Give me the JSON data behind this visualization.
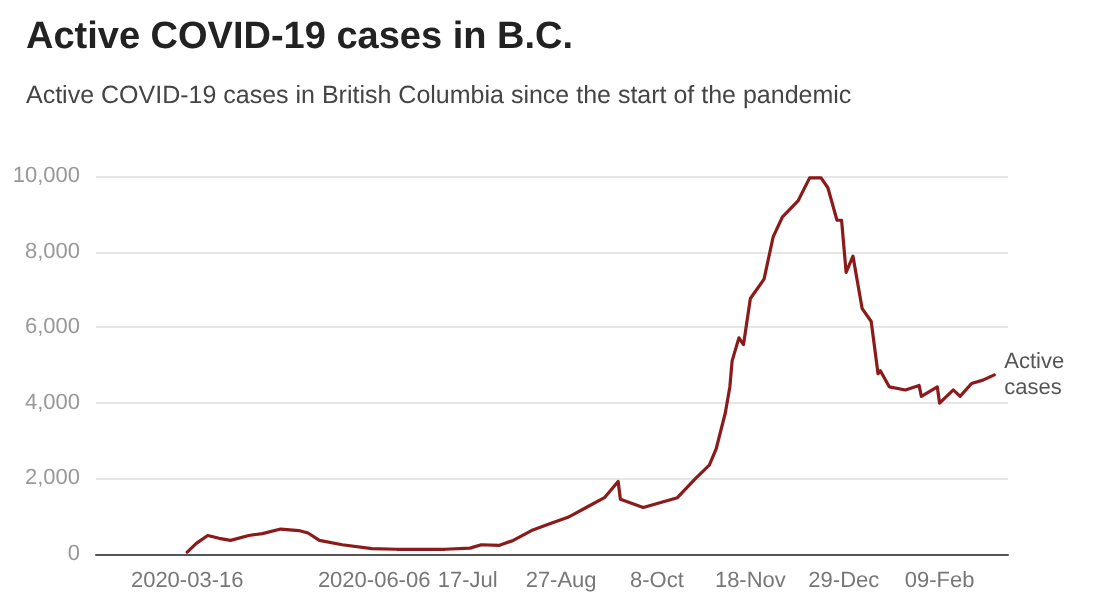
{
  "chart_data": {
    "type": "line",
    "title": "Active COVID-19 cases in B.C.",
    "subtitle": "Active COVID-19 cases in British Columbia since the start of the pandemic",
    "x": [
      "2020-03-16",
      "2020-03-20",
      "2020-03-25",
      "2020-03-30",
      "2020-04-04",
      "2020-04-12",
      "2020-04-18",
      "2020-04-26",
      "2020-05-04",
      "2020-05-08",
      "2020-05-13",
      "2020-05-23",
      "2020-06-05",
      "2020-06-16",
      "2020-07-07",
      "2020-07-18",
      "2020-07-23",
      "2020-07-31",
      "2020-08-06",
      "2020-08-14",
      "2020-08-22",
      "2020-08-30",
      "2020-09-07",
      "2020-09-15",
      "2020-09-21",
      "2020-09-22",
      "2020-10-02",
      "2020-10-17",
      "2020-10-25",
      "2020-10-31",
      "2020-11-03",
      "2020-11-07",
      "2020-11-09",
      "2020-11-10",
      "2020-11-13",
      "2020-11-15",
      "2020-11-18",
      "2020-11-24",
      "2020-11-28",
      "2020-12-02",
      "2020-12-09",
      "2020-12-14",
      "2020-12-19",
      "2020-12-22",
      "2020-12-26",
      "2020-12-28",
      "2020-12-30",
      "2021-01-02",
      "2021-01-06",
      "2021-01-10",
      "2021-01-13",
      "2021-01-14",
      "2021-01-18",
      "2021-01-25",
      "2021-01-31",
      "2021-02-01",
      "2021-02-08",
      "2021-02-09",
      "2021-02-15",
      "2021-02-18",
      "2021-02-23",
      "2021-02-28",
      "2021-03-05"
    ],
    "series": [
      {
        "name": "Active cases",
        "color": "#8b1a1a",
        "values": [
          50,
          280,
          490,
          415,
          360,
          490,
          540,
          660,
          620,
          555,
          360,
          245,
          140,
          125,
          125,
          155,
          245,
          230,
          360,
          620,
          800,
          970,
          1230,
          1490,
          1920,
          1450,
          1230,
          1490,
          2000,
          2350,
          2780,
          3730,
          4420,
          5110,
          5720,
          5540,
          6760,
          7270,
          8390,
          8910,
          9350,
          9950,
          9950,
          9690,
          8830,
          8830,
          7450,
          7880,
          6500,
          6150,
          4770,
          4850,
          4420,
          4340,
          4460,
          4170,
          4420,
          3990,
          4340,
          4170,
          4510,
          4600,
          4740
        ]
      }
    ],
    "xlim": [
      "2020-02-05",
      "2021-03-11"
    ],
    "xticks": [
      {
        "value": "2020-03-16",
        "label": "2020-03-16"
      },
      {
        "value": "2020-06-06",
        "label": "2020-06-06"
      },
      {
        "value": "2020-07-17",
        "label": "17-Jul"
      },
      {
        "value": "2020-08-27",
        "label": "27-Aug"
      },
      {
        "value": "2020-10-08",
        "label": "8-Oct"
      },
      {
        "value": "2020-11-18",
        "label": "18-Nov"
      },
      {
        "value": "2020-12-29",
        "label": "29-Dec"
      },
      {
        "value": "2021-02-09",
        "label": "09-Feb"
      }
    ],
    "ylim": [
      0,
      10000
    ],
    "yticks": [
      0,
      {
        "value": 2000,
        "label": "2,000"
      },
      {
        "value": 4000,
        "label": "4,000"
      },
      {
        "value": 6000,
        "label": "6,000"
      },
      {
        "value": 8000,
        "label": "8,000"
      },
      {
        "value": 10000,
        "label": "10,000"
      }
    ],
    "grid": "y",
    "legend": false,
    "marker": "none",
    "line_style": "solid"
  }
}
